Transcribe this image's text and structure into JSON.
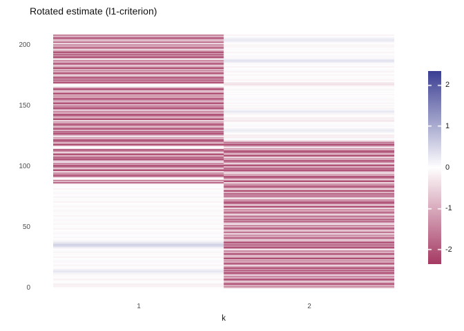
{
  "chart_data": {
    "type": "heatmap",
    "title": "Rotated estimate (l1-criterion)",
    "xlabel": "k",
    "ylabel": "",
    "x_tick_labels": [
      "1",
      "2"
    ],
    "y_ticks": [
      0,
      50,
      100,
      150,
      200
    ],
    "y_tick_labels_top_to_bottom": [
      "200",
      "150",
      "100",
      "50",
      "0"
    ],
    "n_rows": 208,
    "row_order": "bottom-to-top",
    "grid": "off",
    "legend_position": "right",
    "colorbar": {
      "limit": 2.35,
      "ticks": [
        2,
        1,
        0,
        -1,
        -2
      ],
      "tick_labels": [
        "2",
        "1",
        "0",
        "-1",
        "-2"
      ],
      "low_color": "#A53A63",
      "mid_color": "#FFFFFF",
      "high_color": "#3C3F94"
    },
    "axis_text_color": "#4D4D4D",
    "title_color": "#111111",
    "series": [
      {
        "name": "k=1",
        "strong_negative_rows": [
          87,
          208
        ],
        "values": [
          -0.05,
          -0.18,
          -0.12,
          -0.2,
          -0.02,
          0.03,
          -0.09,
          -0.15,
          0.02,
          -0.06,
          0.04,
          -0.1,
          0.15,
          0.3,
          0.22,
          0.12,
          -0.06,
          0.03,
          -0.12,
          0.05,
          -0.02,
          -0.09,
          0.07,
          -0.04,
          0.01,
          -0.14,
          0.02,
          -0.06,
          0.03,
          -0.12,
          0.05,
          -0.02,
          -0.09,
          0.2,
          0.45,
          0.55,
          0.4,
          0.28,
          0.15,
          -0.06,
          0.03,
          -0.12,
          0.05,
          -0.02,
          -0.09,
          0.07,
          -0.04,
          0.01,
          -0.14,
          0.02,
          -0.06,
          0.03,
          -0.12,
          0.05,
          -0.02,
          -0.09,
          0.07,
          -0.04,
          0.01,
          -0.14,
          0.02,
          -0.06,
          0.03,
          -0.12,
          0.05,
          -0.02,
          -0.09,
          0.07,
          -0.04,
          0.01,
          -0.14,
          0.02,
          -0.06,
          0.03,
          -0.12,
          0.05,
          -0.02,
          -0.09,
          0.07,
          -0.04,
          0.01,
          -0.14,
          0.02,
          -0.06,
          0.03,
          -0.12,
          -1.9,
          -0.7,
          -2.2,
          -0.1,
          -0.05,
          -1.6,
          -2.0,
          -0.9,
          -1.4,
          -0.3,
          -2.3,
          -1.1,
          -0.6,
          -1.8,
          -2.1,
          -0.8,
          -1.5,
          -0.2,
          -1.0,
          -2.2,
          -1.3,
          -1.9,
          -0.7,
          -2.2,
          -1.2,
          -0.4,
          -1.6,
          -2.0,
          -0.06,
          0.0,
          -0.3,
          -2.3,
          -1.1,
          -0.6,
          -1.8,
          -2.1,
          -0.8,
          -1.5,
          -0.2,
          -1.0,
          -2.2,
          -1.3,
          -1.9,
          -0.7,
          -2.2,
          -1.2,
          -0.4,
          -1.6,
          -2.0,
          -0.9,
          -1.4,
          -0.3,
          -2.3,
          -1.1,
          -0.6,
          -1.8,
          -2.1,
          -0.8,
          -1.5,
          -0.2,
          -1.0,
          -2.2,
          -1.3,
          -1.9,
          -0.7,
          -2.2,
          -1.2,
          -0.4,
          -1.6,
          -2.0,
          -0.9,
          -1.4,
          -0.3,
          -2.3,
          -1.1,
          -0.6,
          -1.8,
          -2.1,
          -0.8,
          -0.05,
          0.02,
          -0.08,
          -2.2,
          -1.3,
          -1.9,
          -0.7,
          -2.2,
          -1.2,
          -0.4,
          -1.6,
          -2.0,
          -0.9,
          -1.4,
          -0.3,
          -2.3,
          -1.1,
          -0.6,
          -1.8,
          -2.1,
          -0.8,
          -1.5,
          -0.2,
          -1.0,
          -2.2,
          -1.3,
          -1.9,
          -0.7,
          -2.2,
          -1.2,
          -0.4,
          -1.6,
          -2.0,
          -0.9,
          -1.4,
          -0.3,
          -2.3,
          -1.1,
          -0.6,
          -1.8,
          -2.1,
          -0.8,
          -1.5
        ]
      },
      {
        "name": "k=2",
        "strong_negative_rows": [
          1,
          121
        ],
        "values": [
          -0.9,
          -1.4,
          -0.3,
          -2.3,
          -1.1,
          -0.6,
          -1.8,
          -2.1,
          -0.8,
          -1.5,
          -0.2,
          -1.0,
          -2.2,
          -1.3,
          -1.9,
          -0.7,
          -2.2,
          -1.2,
          -0.4,
          -1.6,
          -2.0,
          -0.9,
          -1.4,
          -0.3,
          -2.3,
          -1.1,
          -0.6,
          -1.8,
          -2.1,
          -0.8,
          -1.5,
          -0.2,
          -1.0,
          -2.2,
          -1.3,
          -1.9,
          -0.7,
          -2.2,
          -1.2,
          -0.4,
          -1.6,
          -2.0,
          -0.9,
          -1.4,
          -0.3,
          -2.3,
          -1.1,
          -0.6,
          -1.8,
          -2.1,
          -0.8,
          -1.5,
          -0.2,
          -1.0,
          -2.2,
          -1.3,
          -1.9,
          -0.7,
          -2.2,
          -1.2,
          -0.4,
          -1.6,
          -2.0,
          -0.9,
          -1.4,
          -0.3,
          -2.3,
          -1.1,
          -0.6,
          -1.8,
          -2.1,
          -0.8,
          -1.5,
          -0.2,
          -1.0,
          -2.2,
          -1.3,
          -1.9,
          -0.7,
          -2.2,
          -1.2,
          -0.4,
          -1.6,
          -2.0,
          -0.9,
          -1.4,
          -0.3,
          -2.3,
          -1.1,
          -0.6,
          -1.8,
          -2.1,
          -0.8,
          -1.5,
          -0.2,
          -1.0,
          -2.2,
          -1.3,
          -1.9,
          -0.7,
          -2.2,
          -1.2,
          -0.4,
          -1.6,
          -2.0,
          -0.9,
          -1.4,
          -0.3,
          -2.3,
          -1.1,
          -0.6,
          -1.8,
          -2.1,
          -0.8,
          -1.5,
          -0.2,
          -1.0,
          -2.2,
          -1.3,
          -1.9,
          -0.7,
          -0.09,
          0.07,
          -0.25,
          -0.18,
          -0.22,
          0.02,
          -0.06,
          0.18,
          0.25,
          0.15,
          -0.02,
          -0.09,
          0.07,
          -0.04,
          0.01,
          -0.2,
          -0.28,
          -0.15,
          -0.2,
          0.05,
          -0.02,
          -0.09,
          0.15,
          0.28,
          0.2,
          0.1,
          -0.14,
          0.02,
          -0.18,
          0.03,
          -0.12,
          0.05,
          -0.02,
          -0.09,
          0.07,
          -0.04,
          0.01,
          -0.14,
          0.02,
          -0.06,
          0.03,
          -0.12,
          0.05,
          -0.02,
          -0.09,
          -0.3,
          -0.35,
          -0.25,
          0.01,
          -0.14,
          0.02,
          -0.06,
          0.03,
          -0.12,
          0.05,
          -0.02,
          -0.15,
          0.07,
          -0.04,
          0.01,
          -0.14,
          0.02,
          -0.06,
          0.03,
          0.25,
          0.35,
          0.2,
          -0.02,
          -0.09,
          0.07,
          -0.04,
          0.01,
          -0.14,
          0.02,
          -0.06,
          0.03,
          -0.12,
          -0.12,
          -0.1,
          -0.02,
          -0.09,
          0.2,
          0.28,
          0.18,
          0.1,
          0.01,
          -0.14
        ]
      }
    ]
  }
}
